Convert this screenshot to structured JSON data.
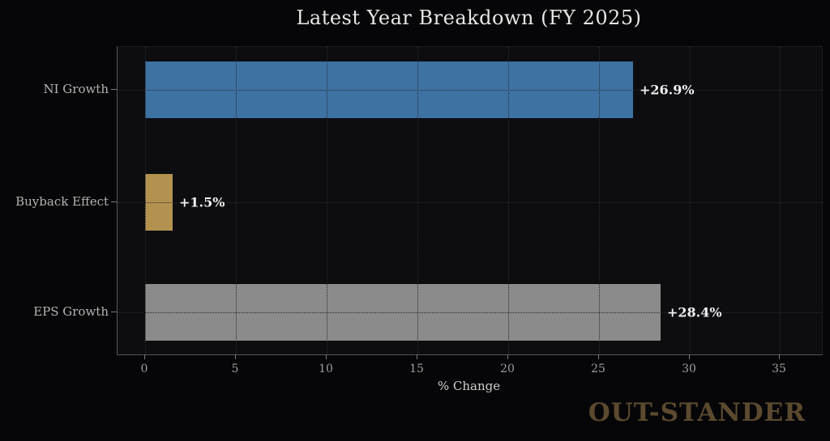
{
  "chart_data": {
    "type": "bar",
    "orientation": "horizontal",
    "title": "Latest Year Breakdown (FY 2025)",
    "categories": [
      "NI Growth",
      "Buyback Effect",
      "EPS Growth"
    ],
    "values": [
      26.9,
      1.5,
      28.4
    ],
    "value_labels": [
      "+26.9%",
      "+1.5%",
      "+28.4%"
    ],
    "bar_colors": [
      "#3d72a2",
      "#b3924f",
      "#8b8b8b"
    ],
    "xlabel": "% Change",
    "x_ticks": [
      0,
      5,
      10,
      15,
      20,
      25,
      30,
      35
    ],
    "xlim": [
      -1.5,
      37.3
    ],
    "grid": "dotted-both-axes",
    "legend": "none"
  },
  "watermark": "OUT-STANDER",
  "colors": {
    "background": "#060608",
    "plot_background": "#0d0d10",
    "grid": "#2a2a30",
    "title_text": "#e6e6e6",
    "category_label_text": "#b3b3b3",
    "value_label_text": "#f0f0f0",
    "tick_label_text": "#9d9d9d",
    "xlabel_text": "#d0d0d0",
    "watermark_text": "#5b4a2f",
    "bar_blue": "#3d72a2",
    "bar_gold": "#b3924f",
    "bar_gray": "#8b8b8b"
  }
}
